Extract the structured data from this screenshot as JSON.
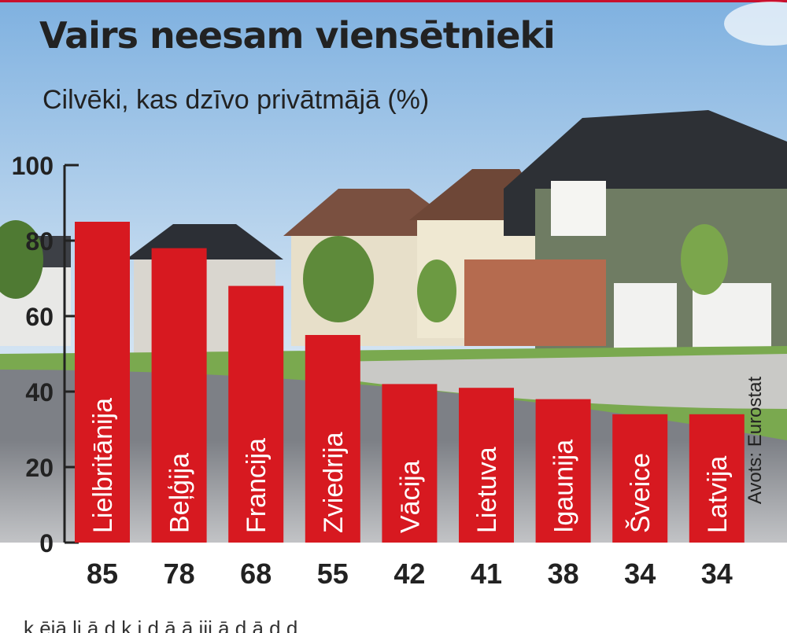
{
  "title": "Vairs neesam viensētnieki",
  "subtitle": "Cilvēki, kas dzīvo privātmājā (%)",
  "source": "Avots: Eurostat",
  "bottom_text": "k    ējā  li          ā d  k      i   d ā     ā      iji  ā     d ā  d d ",
  "colors": {
    "bar": "#d71920",
    "bar_text": "#ffffff",
    "axis": "#222222",
    "sky": "#9cc3e6"
  },
  "chart_data": {
    "type": "bar",
    "title": "Vairs neesam viensētnieki",
    "subtitle": "Cilvēki, kas dzīvo privātmājā (%)",
    "categories": [
      "Lielbritānija",
      "Beļģija",
      "Francija",
      "Zviedrija",
      "Vācija",
      "Lietuva",
      "Igaunija",
      "Šveice",
      "Latvija"
    ],
    "values": [
      85,
      78,
      68,
      55,
      42,
      41,
      38,
      34,
      34
    ],
    "value_labels": [
      "85",
      "78",
      "68",
      "55",
      "42",
      "41",
      "38",
      "34",
      "34"
    ],
    "yticks": [
      "0",
      "20",
      "40",
      "60",
      "80",
      "100"
    ],
    "ylim": [
      0,
      100
    ],
    "xlabel": "",
    "ylabel": "",
    "grid": false,
    "legend": "none"
  }
}
